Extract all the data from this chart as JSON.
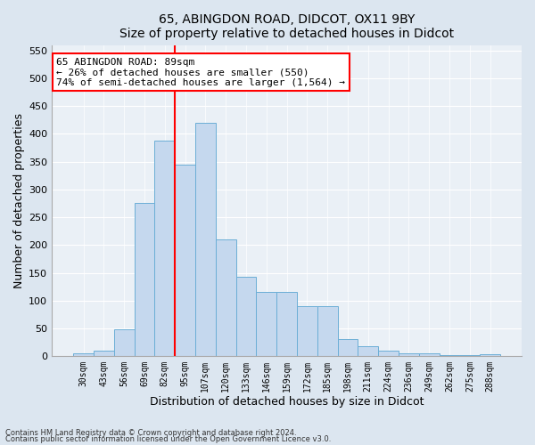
{
  "title1": "65, ABINGDON ROAD, DIDCOT, OX11 9BY",
  "title2": "Size of property relative to detached houses in Didcot",
  "xlabel": "Distribution of detached houses by size in Didcot",
  "ylabel": "Number of detached properties",
  "bar_labels": [
    "30sqm",
    "43sqm",
    "56sqm",
    "69sqm",
    "82sqm",
    "95sqm",
    "107sqm",
    "120sqm",
    "133sqm",
    "146sqm",
    "159sqm",
    "172sqm",
    "185sqm",
    "198sqm",
    "211sqm",
    "224sqm",
    "236sqm",
    "249sqm",
    "262sqm",
    "275sqm",
    "288sqm"
  ],
  "bar_values": [
    5,
    10,
    48,
    275,
    388,
    345,
    420,
    210,
    143,
    116,
    116,
    90,
    90,
    30,
    18,
    10,
    5,
    5,
    2,
    2,
    3
  ],
  "bar_color": "#c5d8ee",
  "bar_edge_color": "#6baed6",
  "vline_x": 4.5,
  "vline_color": "red",
  "annotation_text": "65 ABINGDON ROAD: 89sqm\n← 26% of detached houses are smaller (550)\n74% of semi-detached houses are larger (1,564) →",
  "annotation_box_color": "white",
  "annotation_box_edge": "red",
  "ylim": [
    0,
    560
  ],
  "yticks": [
    0,
    50,
    100,
    150,
    200,
    250,
    300,
    350,
    400,
    450,
    500,
    550
  ],
  "footer1": "Contains HM Land Registry data © Crown copyright and database right 2024.",
  "footer2": "Contains public sector information licensed under the Open Government Licence v3.0.",
  "bg_color": "#dce6f0",
  "plot_bg_color": "#eaf0f6",
  "grid_color": "#ffffff"
}
